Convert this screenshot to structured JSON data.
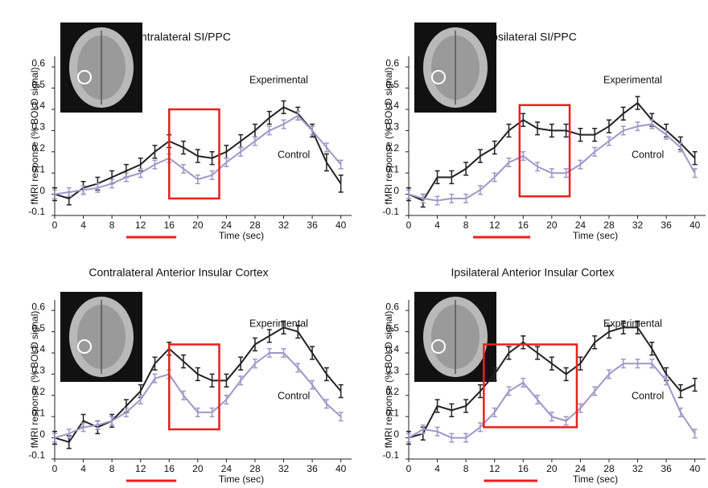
{
  "chart_data": [
    {
      "type": "line",
      "title": "Contralateral SI/PPC",
      "x_label": "Time (sec)",
      "y_label": "fMRI response (% BOLD signal)",
      "x": [
        0,
        2,
        4,
        6,
        8,
        10,
        12,
        14,
        16,
        18,
        20,
        22,
        24,
        26,
        28,
        30,
        32,
        34,
        36,
        38,
        40
      ],
      "series": [
        {
          "name": "Experimental",
          "color": "#222222",
          "values": [
            0,
            -0.02,
            0.03,
            0.05,
            0.08,
            0.11,
            0.14,
            0.2,
            0.25,
            0.22,
            0.18,
            0.17,
            0.2,
            0.25,
            0.3,
            0.36,
            0.41,
            0.38,
            0.3,
            0.15,
            0.05
          ],
          "errors": [
            0.03,
            0.03,
            0.03,
            0.03,
            0.03,
            0.03,
            0.03,
            0.03,
            0.03,
            0.03,
            0.03,
            0.03,
            0.03,
            0.03,
            0.03,
            0.03,
            0.03,
            0.03,
            0.03,
            0.04,
            0.04
          ]
        },
        {
          "name": "Control",
          "color": "#9e98c8",
          "values": [
            0,
            0.01,
            0.02,
            0.03,
            0.05,
            0.08,
            0.1,
            0.14,
            0.17,
            0.12,
            0.07,
            0.09,
            0.15,
            0.2,
            0.25,
            0.3,
            0.33,
            0.37,
            0.3,
            0.22,
            0.14
          ],
          "errors": [
            0.02,
            0.02,
            0.02,
            0.02,
            0.02,
            0.02,
            0.02,
            0.02,
            0.02,
            0.02,
            0.02,
            0.02,
            0.02,
            0.02,
            0.02,
            0.02,
            0.02,
            0.02,
            0.02,
            0.02,
            0.02
          ]
        }
      ],
      "highlight": {
        "x": [
          16,
          23
        ],
        "y": [
          -0.02,
          0.4
        ]
      },
      "stimulus": [
        10,
        17
      ],
      "xlim": [
        0,
        41.5
      ],
      "xticks": [
        0,
        4,
        8,
        12,
        16,
        20,
        24,
        28,
        32,
        36,
        40
      ],
      "ylim": [
        -0.1,
        0.65
      ],
      "yticks": [
        -0.1,
        0,
        0.1,
        0.2,
        0.3,
        0.4,
        0.5,
        0.6
      ]
    },
    {
      "type": "line",
      "title": "Ipsilateral SI/PPC",
      "x_label": "Time (sec)",
      "y_label": "fMRI response (% BOLD signal)",
      "x": [
        0,
        2,
        4,
        6,
        8,
        10,
        12,
        14,
        16,
        18,
        20,
        22,
        24,
        26,
        28,
        30,
        32,
        34,
        36,
        38,
        40
      ],
      "series": [
        {
          "name": "Experimental",
          "color": "#222222",
          "values": [
            0,
            -0.03,
            0.08,
            0.08,
            0.12,
            0.18,
            0.22,
            0.3,
            0.35,
            0.31,
            0.3,
            0.3,
            0.28,
            0.28,
            0.32,
            0.38,
            0.43,
            0.35,
            0.3,
            0.24,
            0.17
          ],
          "errors": [
            0.03,
            0.03,
            0.03,
            0.03,
            0.03,
            0.03,
            0.03,
            0.03,
            0.03,
            0.03,
            0.03,
            0.03,
            0.03,
            0.03,
            0.03,
            0.03,
            0.03,
            0.03,
            0.03,
            0.03,
            0.03
          ]
        },
        {
          "name": "Control",
          "color": "#9e98c8",
          "values": [
            0,
            -0.02,
            -0.03,
            -0.02,
            -0.02,
            0.02,
            0.08,
            0.15,
            0.18,
            0.13,
            0.1,
            0.1,
            0.14,
            0.2,
            0.25,
            0.3,
            0.32,
            0.33,
            0.28,
            0.22,
            0.1
          ],
          "errors": [
            0.02,
            0.02,
            0.02,
            0.02,
            0.02,
            0.02,
            0.02,
            0.02,
            0.02,
            0.02,
            0.02,
            0.02,
            0.02,
            0.02,
            0.02,
            0.02,
            0.02,
            0.02,
            0.02,
            0.02,
            0.02
          ]
        }
      ],
      "highlight": {
        "x": [
          15.5,
          22.5
        ],
        "y": [
          -0.01,
          0.42
        ]
      },
      "stimulus": [
        9,
        17
      ],
      "xlim": [
        0,
        41.5
      ],
      "xticks": [
        0,
        4,
        8,
        12,
        16,
        20,
        24,
        28,
        32,
        36,
        40
      ],
      "ylim": [
        -0.1,
        0.65
      ],
      "yticks": [
        -0.1,
        0,
        0.1,
        0.2,
        0.3,
        0.4,
        0.5,
        0.6
      ]
    },
    {
      "type": "line",
      "title": "Contralateral Anterior Insular Cortex",
      "x_label": "Time (sec)",
      "y_label": "fMRI response (% BOLD signal)",
      "x": [
        0,
        2,
        4,
        6,
        8,
        10,
        12,
        14,
        16,
        18,
        20,
        22,
        24,
        26,
        28,
        30,
        32,
        34,
        36,
        38,
        40
      ],
      "series": [
        {
          "name": "Experimental",
          "color": "#222222",
          "values": [
            0,
            -0.02,
            0.08,
            0.05,
            0.08,
            0.15,
            0.22,
            0.35,
            0.42,
            0.36,
            0.3,
            0.27,
            0.27,
            0.35,
            0.44,
            0.48,
            0.52,
            0.5,
            0.4,
            0.3,
            0.22
          ],
          "errors": [
            0.03,
            0.03,
            0.03,
            0.03,
            0.03,
            0.03,
            0.03,
            0.03,
            0.03,
            0.03,
            0.03,
            0.03,
            0.03,
            0.03,
            0.03,
            0.03,
            0.03,
            0.03,
            0.03,
            0.03,
            0.03
          ]
        },
        {
          "name": "Control",
          "color": "#9e98c8",
          "values": [
            0,
            0.02,
            0.05,
            0.06,
            0.08,
            0.12,
            0.18,
            0.28,
            0.3,
            0.2,
            0.12,
            0.12,
            0.18,
            0.27,
            0.35,
            0.4,
            0.4,
            0.33,
            0.25,
            0.16,
            0.1
          ],
          "errors": [
            0.02,
            0.02,
            0.02,
            0.02,
            0.02,
            0.02,
            0.02,
            0.02,
            0.02,
            0.02,
            0.02,
            0.02,
            0.02,
            0.02,
            0.02,
            0.02,
            0.02,
            0.02,
            0.02,
            0.02,
            0.02
          ]
        }
      ],
      "highlight": {
        "x": [
          16,
          23
        ],
        "y": [
          0.04,
          0.44
        ]
      },
      "stimulus": [
        10,
        17
      ],
      "xlim": [
        0,
        41.5
      ],
      "xticks": [
        0,
        4,
        8,
        12,
        16,
        20,
        24,
        28,
        32,
        36,
        40
      ],
      "ylim": [
        -0.1,
        0.65
      ],
      "yticks": [
        -0.1,
        0,
        0.1,
        0.2,
        0.3,
        0.4,
        0.5,
        0.6
      ]
    },
    {
      "type": "line",
      "title": "Ipsilateral Anterior Insular Cortex",
      "x_label": "Time (sec)",
      "y_label": "fMRI response (% BOLD signal)",
      "x": [
        0,
        2,
        4,
        6,
        8,
        10,
        12,
        14,
        16,
        18,
        20,
        22,
        24,
        26,
        28,
        30,
        32,
        34,
        36,
        38,
        40
      ],
      "series": [
        {
          "name": "Experimental",
          "color": "#222222",
          "values": [
            0,
            0.02,
            0.15,
            0.13,
            0.15,
            0.22,
            0.3,
            0.4,
            0.45,
            0.4,
            0.35,
            0.3,
            0.35,
            0.45,
            0.5,
            0.52,
            0.52,
            0.42,
            0.3,
            0.22,
            0.25
          ],
          "errors": [
            0.03,
            0.03,
            0.03,
            0.03,
            0.03,
            0.03,
            0.03,
            0.03,
            0.03,
            0.03,
            0.03,
            0.03,
            0.03,
            0.03,
            0.03,
            0.03,
            0.03,
            0.03,
            0.03,
            0.03,
            0.03
          ]
        },
        {
          "name": "Control",
          "color": "#9e98c8",
          "values": [
            0,
            0.04,
            0.03,
            0,
            0,
            0.05,
            0.12,
            0.22,
            0.26,
            0.18,
            0.1,
            0.08,
            0.14,
            0.22,
            0.3,
            0.35,
            0.35,
            0.35,
            0.27,
            0.12,
            0.02
          ],
          "errors": [
            0.02,
            0.02,
            0.02,
            0.02,
            0.02,
            0.02,
            0.02,
            0.02,
            0.02,
            0.02,
            0.02,
            0.02,
            0.02,
            0.02,
            0.02,
            0.02,
            0.02,
            0.02,
            0.02,
            0.02,
            0.02
          ]
        }
      ],
      "highlight": {
        "x": [
          10.5,
          23.5
        ],
        "y": [
          0.05,
          0.44
        ]
      },
      "stimulus": [
        10.5,
        18
      ],
      "xlim": [
        0,
        41.5
      ],
      "xticks": [
        0,
        4,
        8,
        12,
        16,
        20,
        24,
        28,
        32,
        36,
        40
      ],
      "ylim": [
        -0.1,
        0.65
      ],
      "yticks": [
        -0.1,
        0,
        0.1,
        0.2,
        0.3,
        0.4,
        0.5,
        0.6
      ]
    }
  ]
}
